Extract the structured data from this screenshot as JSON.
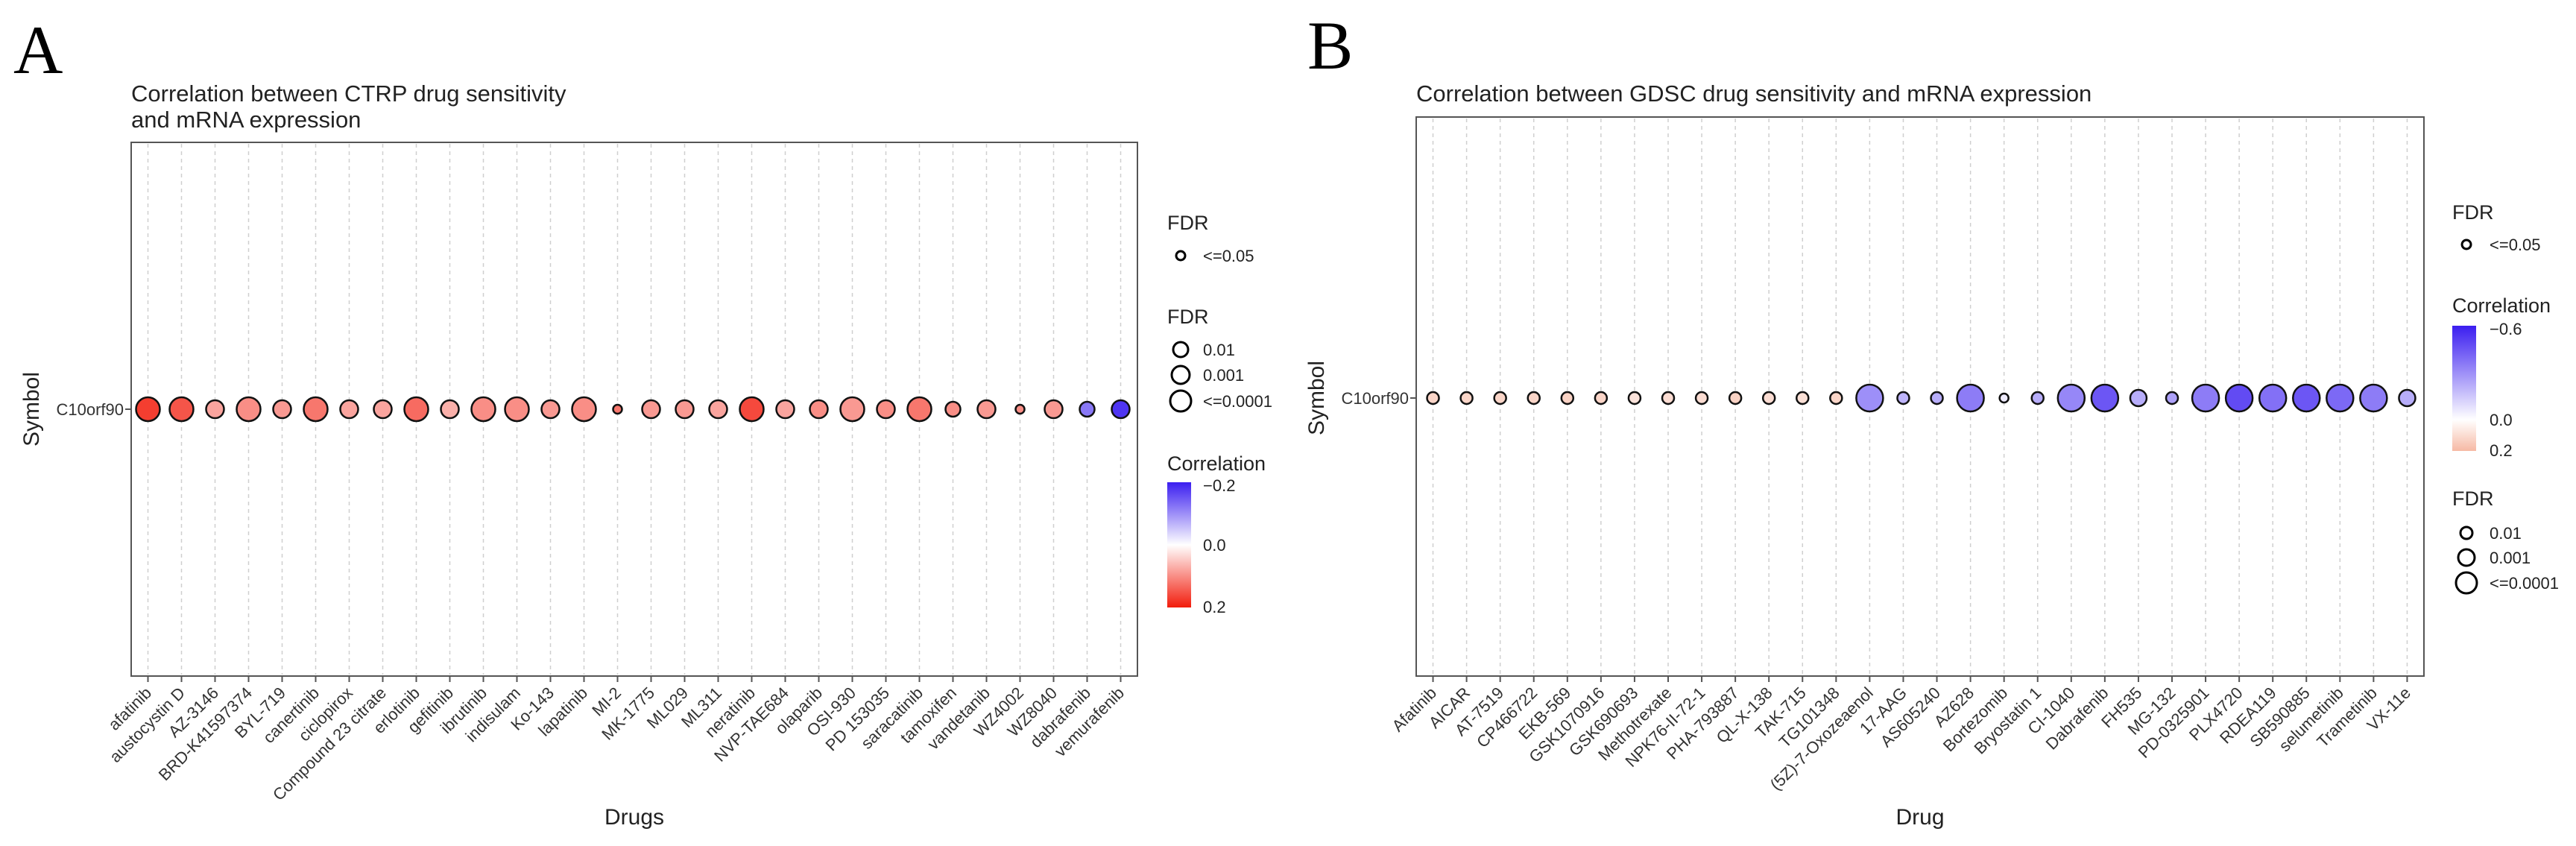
{
  "panels": [
    {
      "letter": "A",
      "chart_data": {
        "type": "scatter",
        "title_lines": [
          "Correlation between CTRP drug sensitivity",
          "and mRNA expression"
        ],
        "xlabel": "Drugs",
        "ylabel": "Symbol",
        "symbols": [
          "C10orf90"
        ],
        "categories": [
          "afatinib",
          "austocystin D",
          "AZ-3146",
          "BRD-K41597374",
          "BYL-719",
          "canertinib",
          "ciclopirox",
          "Compound 23 citrate",
          "erlotinib",
          "gefitinib",
          "ibrutinib",
          "indisulam",
          "Ko-143",
          "lapatinib",
          "MI-2",
          "MK-1775",
          "ML029",
          "ML311",
          "neratinib",
          "NVP-TAE684",
          "olaparib",
          "OSI-930",
          "PD 153035",
          "saracatinib",
          "tamoxifen",
          "vandetanib",
          "WZ4002",
          "WZ8040",
          "dabrafenib",
          "vemurafenib"
        ],
        "correlation": [
          0.17,
          0.15,
          0.08,
          0.1,
          0.09,
          0.12,
          0.08,
          0.08,
          0.13,
          0.07,
          0.1,
          0.1,
          0.09,
          0.1,
          0.12,
          0.09,
          0.09,
          0.08,
          0.16,
          0.08,
          0.1,
          0.09,
          0.1,
          0.12,
          0.1,
          0.09,
          0.1,
          0.09,
          -0.12,
          -0.18
        ],
        "fdr_level": [
          3,
          3,
          2,
          3,
          2,
          3,
          2,
          2,
          3,
          2,
          3,
          3,
          2,
          3,
          0,
          2,
          2,
          2,
          3,
          2,
          2,
          3,
          2,
          3,
          1,
          2,
          0,
          2,
          1,
          2
        ],
        "corr_range": [
          0.2,
          -0.2
        ],
        "legend": {
          "fdr_blank": {
            "title": "FDR",
            "labels": [
              "<=0.05"
            ]
          },
          "fdr_size": {
            "title": "FDR",
            "labels": [
              "0.01",
              "0.001",
              "<=0.0001"
            ]
          },
          "color": {
            "title": "Correlation",
            "ticks": [
              "−0.2",
              "0.0",
              "0.2"
            ]
          }
        },
        "grid": true
      }
    },
    {
      "letter": "B",
      "chart_data": {
        "type": "scatter",
        "title_lines": [
          "Correlation between GDSC drug sensitivity and mRNA expression"
        ],
        "xlabel": "Drug",
        "ylabel": "Symbol",
        "symbols": [
          "C10orf90"
        ],
        "categories": [
          "Afatinib",
          "AICAR",
          "AT-7519",
          "CP466722",
          "EKB-569",
          "GSK1070916",
          "GSK690693",
          "Methotrexate",
          "NPK76-II-72-1",
          "PHA-793887",
          "QL-X-138",
          "TAK-715",
          "TG101348",
          "(5Z)-7-Oxozeaenol",
          "17-AAG",
          "AS605240",
          "AZ628",
          "Bortezomib",
          "Bryostatin 1",
          "CI-1040",
          "Dabrafenib",
          "FH535",
          "MG-132",
          "PD-0325901",
          "PLX4720",
          "RDEA119",
          "SB590885",
          "selumetinib",
          "Trametinib",
          "VX-11e"
        ],
        "correlation": [
          0.12,
          0.12,
          0.12,
          0.12,
          0.13,
          0.12,
          0.08,
          0.1,
          0.1,
          0.13,
          0.1,
          0.09,
          0.12,
          -0.3,
          -0.2,
          -0.22,
          -0.35,
          -0.05,
          -0.22,
          -0.32,
          -0.45,
          -0.22,
          -0.25,
          -0.35,
          -0.48,
          -0.38,
          -0.45,
          -0.4,
          -0.35,
          -0.22
        ],
        "fdr_level": [
          1,
          1,
          1,
          1,
          1,
          1,
          1,
          1,
          1,
          1,
          1,
          1,
          1,
          3,
          1,
          1,
          3,
          0,
          1,
          3,
          3,
          2,
          1,
          3,
          3,
          3,
          3,
          3,
          3,
          2
        ],
        "corr_range": [
          0.2,
          -0.6
        ],
        "legend": {
          "fdr_blank": {
            "title": "FDR",
            "labels": [
              "<=0.05"
            ]
          },
          "color": {
            "title": "Correlation",
            "ticks": [
              "−0.6",
              "0.0",
              "0.2"
            ]
          },
          "fdr_size": {
            "title": "FDR",
            "labels": [
              "0.01",
              "0.001",
              "<=0.0001"
            ]
          }
        },
        "grid": true
      }
    }
  ]
}
